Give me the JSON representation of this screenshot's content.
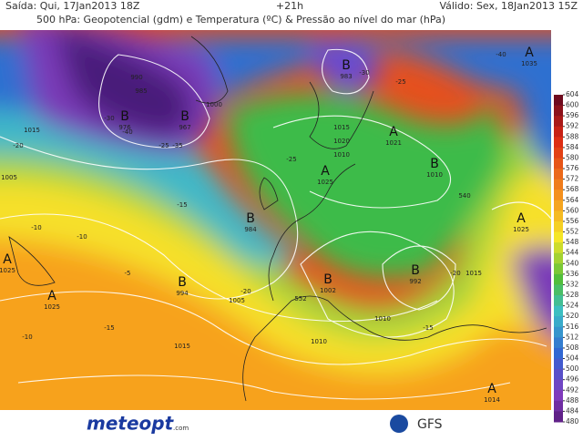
{
  "header": {
    "issued": "Saída: Qui, 17Jan2013 18Z",
    "lead": "+21h",
    "valid": "Válido: Sex, 18Jan2013 15Z",
    "title": "500 hPa: Geopotencial (gdm) e Temperatura (ºC) & Pressão ao nível do mar (hPa)"
  },
  "colorbar": {
    "ticks": [
      604,
      600,
      596,
      592,
      588,
      584,
      580,
      576,
      572,
      568,
      564,
      560,
      556,
      552,
      548,
      544,
      540,
      536,
      532,
      528,
      524,
      520,
      516,
      512,
      508,
      504,
      500,
      496,
      492,
      488,
      484,
      480
    ]
  },
  "pressure_centers": [
    {
      "letter": "B",
      "value": "976"
    },
    {
      "letter": "B",
      "value": "967"
    },
    {
      "letter": "B",
      "value": "983"
    },
    {
      "letter": "A",
      "value": "1021"
    },
    {
      "letter": "A",
      "value": "1025"
    },
    {
      "letter": "B",
      "value": "1010"
    },
    {
      "letter": "B",
      "value": "984"
    },
    {
      "letter": "B",
      "value": "994"
    },
    {
      "letter": "A",
      "value": "1025"
    },
    {
      "letter": "A",
      "value": "1025"
    },
    {
      "letter": "B",
      "value": "1002"
    },
    {
      "letter": "B",
      "value": "992"
    },
    {
      "letter": "A",
      "value": "1025"
    },
    {
      "letter": "A",
      "value": "1035"
    },
    {
      "letter": "A",
      "value": "1014"
    }
  ],
  "contour_labels": [
    "990",
    "985",
    "-30",
    "-40",
    "1015",
    "-20",
    "1005",
    "-25",
    "-35",
    "1000",
    "-15",
    "-10",
    "1020",
    "1015",
    "1010",
    "-10",
    "-5",
    "-25",
    "-30",
    "1005",
    "-20",
    "540",
    "552",
    "-15",
    "1015",
    "1010",
    "1010",
    "-10",
    "1015",
    "-15",
    "-20",
    "-25",
    "-40"
  ],
  "footer": {
    "logo": "meteopt",
    "logo_suffix": ".com",
    "source": "GFS"
  }
}
